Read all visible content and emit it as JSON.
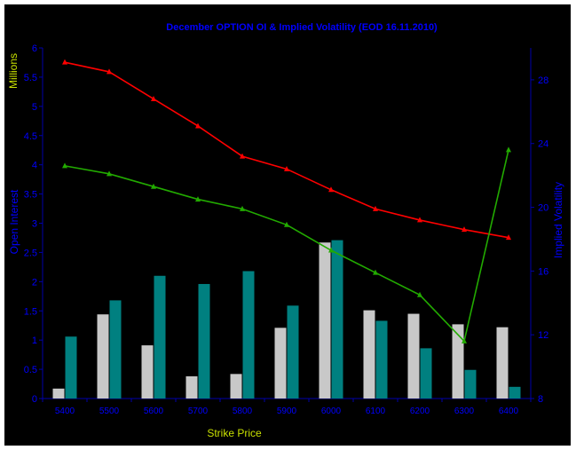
{
  "chart_data": {
    "type": "bar+line",
    "title": "December  OPTION OI & Implied Volatility  (EOD 16.11.2010)",
    "xlabel": "Strike Price",
    "ylabel_left": "Open Interest",
    "ylabel_left_unit": "Millions",
    "ylabel_right": "Implied Volatility",
    "categories": [
      "5400",
      "5500",
      "5600",
      "5700",
      "5800",
      "5900",
      "6000",
      "6100",
      "6200",
      "6300",
      "6400"
    ],
    "y_left_ticks": [
      "0",
      "0.5",
      "1",
      "1.5",
      "2",
      "2.5",
      "3",
      "3.5",
      "4",
      "4.5",
      "5",
      "5.5",
      "6"
    ],
    "y_left_range": [
      0,
      6
    ],
    "y_right_ticks": [
      "8",
      "12",
      "16",
      "20",
      "24",
      "28"
    ],
    "y_right_range": [
      8,
      30
    ],
    "bar_series": [
      {
        "color": "#c8c8c8",
        "values": [
          0.17,
          1.44,
          0.91,
          0.38,
          0.42,
          1.21,
          2.67,
          1.51,
          1.45,
          1.27,
          1.22
        ]
      },
      {
        "color": "#008080",
        "values": [
          1.06,
          1.68,
          2.1,
          1.96,
          2.18,
          1.59,
          2.71,
          1.33,
          0.86,
          0.49,
          0.2
        ]
      }
    ],
    "line_series": [
      {
        "color": "#ff0000",
        "values": [
          29.1,
          28.5,
          26.8,
          25.1,
          23.2,
          22.4,
          21.1,
          19.9,
          19.2,
          18.6,
          18.1
        ]
      },
      {
        "color": "#22aa00",
        "values": [
          22.6,
          22.1,
          21.3,
          20.5,
          19.9,
          18.9,
          17.3,
          15.9,
          14.5,
          11.6,
          23.6
        ]
      }
    ],
    "grid": false,
    "background": "#000000",
    "axis_color": "#0000aa",
    "title_color": "#0000ff",
    "ylabel_color": "#0000ff",
    "label_color_x": "#c8e000"
  }
}
